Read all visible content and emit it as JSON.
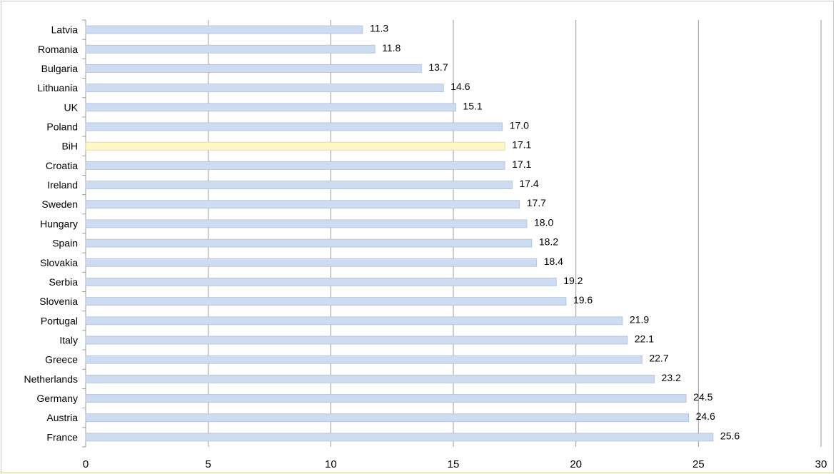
{
  "colors": {
    "bar": "#cddcf0",
    "bar_edge": "#aebfdc",
    "highlight": "#fff8c4",
    "highlight_edge": "#d9d29a",
    "grid": "#9a9a9a",
    "frame": "#c8d29a"
  },
  "chart_data": {
    "type": "bar",
    "orientation": "horizontal",
    "categories": [
      "Latvia",
      "Romania",
      "Bulgaria",
      "Lithuania",
      "UK",
      "Poland",
      "BiH",
      "Croatia",
      "Ireland",
      "Sweden",
      "Hungary",
      "Spain",
      "Slovakia",
      "Serbia",
      "Slovenia",
      "Portugal",
      "Italy",
      "Greece",
      "Netherlands",
      "Germany",
      "Austria",
      "France"
    ],
    "values": [
      11.3,
      11.8,
      13.7,
      14.6,
      15.1,
      17.0,
      17.1,
      17.1,
      17.4,
      17.7,
      18.0,
      18.2,
      18.4,
      19.2,
      19.6,
      21.9,
      22.1,
      22.7,
      23.2,
      24.5,
      24.6,
      25.6
    ],
    "value_labels": [
      "11.3",
      "11.8",
      "13.7",
      "14.6",
      "15.1",
      "17.0",
      "17.1",
      "17.1",
      "17.4",
      "17.7",
      "18.0",
      "18.2",
      "18.4",
      "19.2",
      "19.6",
      "21.9",
      "22.1",
      "22.7",
      "23.2",
      "24.5",
      "24.6",
      "25.6"
    ],
    "highlight_category": "BiH",
    "xlim": [
      0,
      30
    ],
    "xticks": [
      "0",
      "5",
      "10",
      "15",
      "20",
      "25",
      "30"
    ],
    "grid": "vertical",
    "title": "",
    "xlabel": "",
    "ylabel": ""
  }
}
